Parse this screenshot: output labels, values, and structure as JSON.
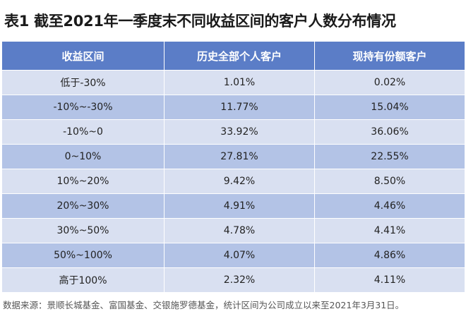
{
  "title": "表1 截至2021年一季度末不同收益区间的客户人数分布情况",
  "table": {
    "headers": [
      "收益区间",
      "历史全部个人客户",
      "现持有份额客户"
    ],
    "rows": [
      [
        "低于-30%",
        "1.01%",
        "0.02%"
      ],
      [
        "-10%~-30%",
        "11.77%",
        "15.04%"
      ],
      [
        "-10%~0",
        "33.92%",
        "36.06%"
      ],
      [
        "0~10%",
        "27.81%",
        "22.55%"
      ],
      [
        "10%~20%",
        "9.42%",
        "8.50%"
      ],
      [
        "20%~30%",
        "4.91%",
        "4.46%"
      ],
      [
        "30%~50%",
        "4.78%",
        "4.41%"
      ],
      [
        "50%~100%",
        "4.07%",
        "4.86%"
      ],
      [
        "高于100%",
        "2.32%",
        "4.11%"
      ]
    ]
  },
  "note": "数据来源：景顺长城基金、富国基金、交银施罗德基金，统计区间为公司成立以来至2021年3月31日。",
  "colors": {
    "header_bg": "#5b7dc7",
    "row_light": "#d9e0f1",
    "row_dark": "#b3c3e6"
  }
}
